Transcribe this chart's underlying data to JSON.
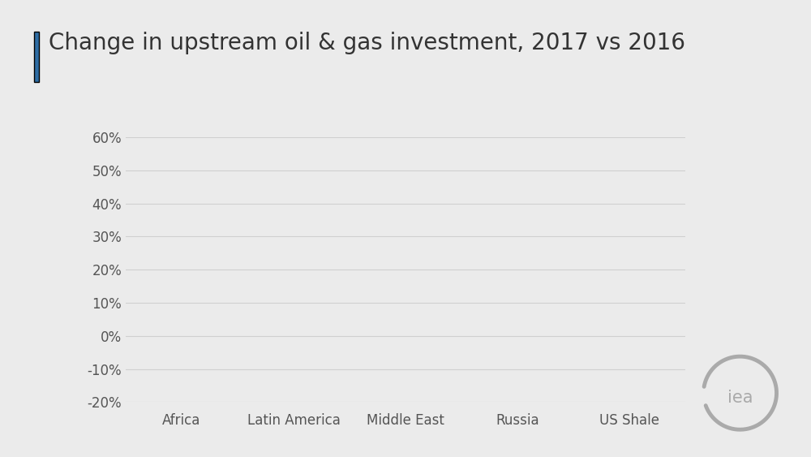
{
  "title": "Change in upstream oil & gas investment, 2017 vs 2016",
  "categories": [
    "Africa",
    "Latin America",
    "Middle East",
    "Russia",
    "US Shale"
  ],
  "yticks": [
    -20,
    -10,
    0,
    10,
    20,
    30,
    40,
    50,
    60
  ],
  "ylim": [
    -20,
    60
  ],
  "background_color": "#ebebeb",
  "plot_bg_color": "#ebebeb",
  "grid_color": "#d0d0d0",
  "title_color": "#333333",
  "tick_label_color": "#555555",
  "title_fontsize": 20,
  "tick_fontsize": 12,
  "accent_color": "#2e6da4",
  "iea_logo_color": "#aaaaaa"
}
